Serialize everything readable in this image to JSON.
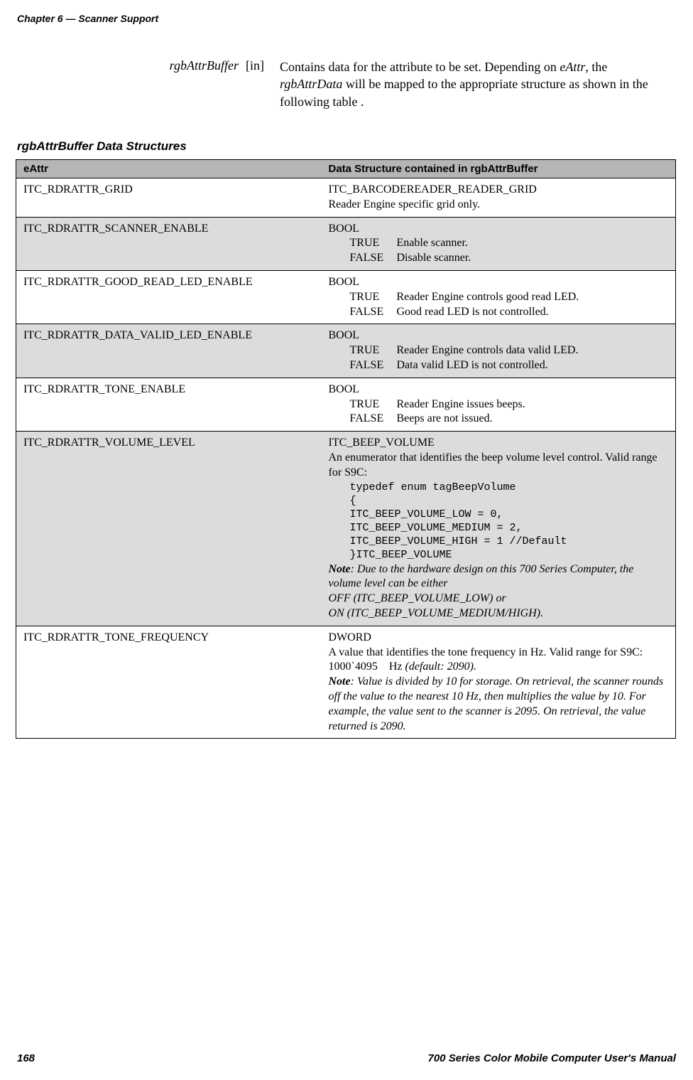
{
  "header": {
    "chapter_label": "Chapter 6",
    "separator": " — ",
    "chapter_title": "Scanner Support"
  },
  "param": {
    "name": "rgbAttrBuffer",
    "direction": "[in]",
    "desc_parts": [
      "Contains data for the attribute to be set. Depending on ",
      "eAttr",
      ", the ",
      "rgbAttrData",
      " will be mapped to the appropriate structure as shown in the following table ."
    ]
  },
  "table_title": "rgbAttrBuffer Data Structures",
  "columns": [
    "eAttr",
    "Data Structure contained in rgbAttrBuffer"
  ],
  "rows": [
    {
      "eAttr": "ITC_RDRATTR_GRID",
      "ds_line1": "ITC_BARCODEREADER_READER_GRID",
      "ds_line2": "Reader Engine specific grid only."
    },
    {
      "eAttr": "ITC_RDRATTR_SCANNER_ENABLE",
      "bool_label": "BOOL",
      "true_key": "TRUE",
      "true_val": "Enable scanner.",
      "false_key": "FALSE",
      "false_val": "Disable scanner."
    },
    {
      "eAttr": "ITC_RDRATTR_GOOD_READ_LED_ENABLE",
      "bool_label": "BOOL",
      "true_key": "TRUE",
      "true_val": "Reader Engine controls good read LED.",
      "false_key": "FALSE",
      "false_val": "Good read LED is not controlled."
    },
    {
      "eAttr": "ITC_RDRATTR_DATA_VALID_LED_ENABLE",
      "bool_label": "BOOL",
      "true_key": "TRUE",
      "true_val": "Reader Engine controls data valid LED.",
      "false_key": "FALSE",
      "false_val": "Data valid LED is not controlled."
    },
    {
      "eAttr": "ITC_RDRATTR_TONE_ENABLE",
      "bool_label": "BOOL",
      "true_key": "TRUE",
      "true_val": "Reader Engine issues beeps.",
      "false_key": "FALSE",
      "false_val": "Beeps are not issued."
    },
    {
      "eAttr": "ITC_RDRATTR_VOLUME_LEVEL",
      "vol_line1": "ITC_BEEP_VOLUME",
      "vol_line2": "An enumerator that identifies the beep volume level control. Valid range for S9C:",
      "code_l1": "typedef enum tagBeepVolume",
      "code_l2": "{",
      "code_l3": "ITC_BEEP_VOLUME_LOW = 0,",
      "code_l4": "ITC_BEEP_VOLUME_MEDIUM = 2,",
      "code_l5": "ITC_BEEP_VOLUME_HIGH = 1 //Default",
      "code_l6": "}ITC_BEEP_VOLUME",
      "note_label": "Note",
      "note_text": ": Due to the hardware design on this 700 Series Computer, the volume level can be either",
      "note_l2": "OFF (ITC_BEEP_VOLUME_LOW) or",
      "note_l3": "ON (ITC_BEEP_VOLUME_MEDIUM/HIGH)."
    },
    {
      "eAttr": "ITC_RDRATTR_TONE_FREQUENCY",
      "tf_line1": "DWORD",
      "tf_line2a": "A value that identifies the tone frequency in Hz. Valid range for S9C: 1000`4095 Hz ",
      "tf_line2b": "(default: 2090).",
      "note_label": "Note",
      "note_text": ": Value is divided by 10 for storage. On retrieval, the scanner rounds off the value to the nearest 10 Hz, then multiplies the value by 10. For example, the value sent to the scanner is 2095. On retrieval, the value returned is 2090."
    }
  ],
  "footer": {
    "page": "168",
    "title": "700 Series Color Mobile Computer User's Manual"
  }
}
